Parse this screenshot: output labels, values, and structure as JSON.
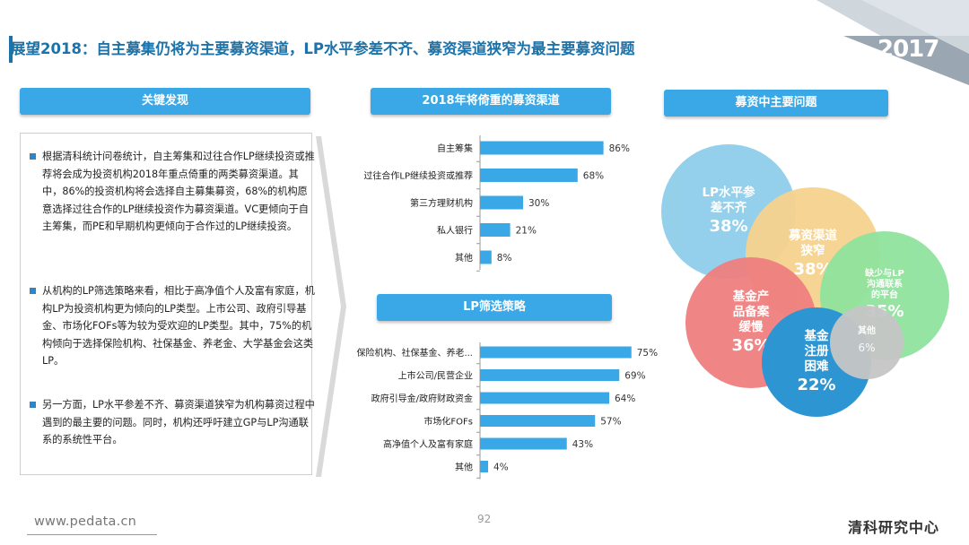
{
  "header": {
    "title": "展望2018：自主募集仍将为主要募资渠道，LP水平参差不齐、募资渠道狭窄为最主要募资问题",
    "year": "2017"
  },
  "findings": {
    "heading": "关键发现",
    "bullets": [
      "根据清科统计问卷统计，自主筹集和过往合作LP继续投资或推荐将会成为投资机构2018年重点倚重的两类募资渠道。其中，86%的投资机构将会选择自主募集募资，68%的机构愿意选择过往合作的LP继续投资作为募资渠道。VC更倾向于自主筹集，而PE和早期机构更倾向于合作过的LP继续投资。",
      "从机构的LP筛选策略来看，相比于高净值个人及富有家庭，机构LP为投资机构更为倾向的LP类型。上市公司、政府引导基金、市场化FOFs等为较为受欢迎的LP类型。其中，75%的机构倾向于选择保险机构、社保基金、养老金、大学基金会这类LP。",
      "另一方面，LP水平参差不齐、募资渠道狭窄为机构募资过程中遇到的最主要的问题。同时，机构还呼吁建立GP与LP沟通联系的系统性平台。"
    ]
  },
  "chart_data": [
    {
      "type": "bar",
      "title": "2018年将倚重的募资渠道",
      "orientation": "horizontal",
      "categories": [
        "自主筹集",
        "过往合作LP继续投资或推荐",
        "第三方理财机构",
        "私人银行",
        "其他"
      ],
      "values": [
        86,
        68,
        30,
        21,
        8
      ],
      "value_labels": [
        "86%",
        "68%",
        "30%",
        "21%",
        "8%"
      ],
      "unit": "%",
      "xlim": [
        0,
        100
      ],
      "color": "#3aa8e6"
    },
    {
      "type": "bar",
      "title": "LP筛选策略",
      "orientation": "horizontal",
      "categories": [
        "保险机构、社保基金、养老...",
        "上市公司/民营企业",
        "政府引导金/政府财政资金",
        "市场化FOFs",
        "高净值个人及富有家庭",
        "其他"
      ],
      "values": [
        75,
        69,
        64,
        57,
        43,
        4
      ],
      "value_labels": [
        "75%",
        "69%",
        "64%",
        "57%",
        "43%",
        "4%"
      ],
      "unit": "%",
      "xlim": [
        0,
        100
      ],
      "color": "#3aa8e6"
    },
    {
      "type": "bubble",
      "title": "募资中主要问题",
      "items": [
        {
          "label": "LP水平参差不齐",
          "value": 38,
          "value_label": "38%",
          "color": "#8fcdea"
        },
        {
          "label": "募资渠道狭窄",
          "value": 38,
          "value_label": "38%",
          "color": "#f6d38f"
        },
        {
          "label": "缺少与LP沟通联系的平台",
          "value": 35,
          "value_label": "35%",
          "color": "#90e39e"
        },
        {
          "label": "基金产品备案缓慢",
          "value": 36,
          "value_label": "36%",
          "color": "#ef7f7f"
        },
        {
          "label": "基金注册困难",
          "value": 22,
          "value_label": "22%",
          "color": "#2e95d3"
        },
        {
          "label": "其他",
          "value": 6,
          "value_label": "6%",
          "color": "#c6c6c6"
        }
      ]
    }
  ],
  "bubble_lines": [
    [
      "LP水平参",
      "差不齐"
    ],
    [
      "募资渠道",
      "狭窄"
    ],
    [
      "缺少与LP",
      "沟通联系",
      "的平台"
    ],
    [
      "基金产",
      "品备案",
      "缓慢"
    ],
    [
      "基金",
      "注册",
      "困难"
    ],
    [
      "其他"
    ]
  ],
  "footer": {
    "url": "www.pedata.cn",
    "page": "92",
    "brand": "清科研究中心"
  }
}
